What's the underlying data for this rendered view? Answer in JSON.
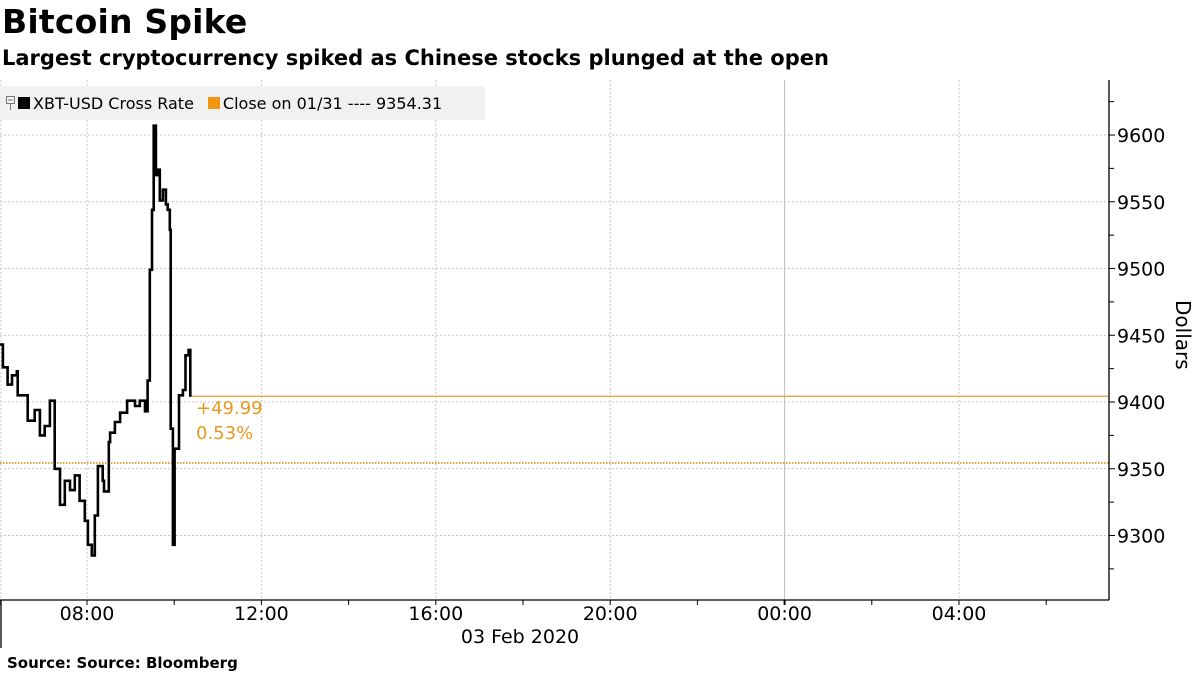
{
  "title": "Bitcoin Spike",
  "subtitle": "Largest cryptocurrency spiked as Chinese stocks plunged at the open",
  "legend": {
    "items": [
      {
        "label": "XBT-USD Cross Rate",
        "color": "#000000",
        "icon": "black-square"
      },
      {
        "label": "Close on 01/31 ---- 9354.31",
        "color": "#f0960f",
        "icon": "orange-square"
      }
    ]
  },
  "y_axis": {
    "label": "Dollars",
    "ticks": [
      "9600",
      "9550",
      "9500",
      "9450",
      "9400",
      "9350",
      "9300"
    ]
  },
  "x_axis": {
    "ticks": [
      "08:00",
      "12:00",
      "16:00",
      "20:00",
      "00:00",
      "04:00"
    ],
    "date_label": "03 Feb 2020"
  },
  "annotation": {
    "change": "+49.99",
    "pct": "0.53%"
  },
  "source": "Source: Source: Bloomberg",
  "colors": {
    "series": "#000000",
    "reference": "#e8a33a",
    "last_line": "#d9a43a",
    "annotation": "#e8981e",
    "grid": "#c8c8c8"
  },
  "chart_data": {
    "type": "line",
    "title": "Bitcoin Spike",
    "subtitle": "Largest cryptocurrency spiked as Chinese stocks plunged at the open",
    "xlabel": "03 Feb 2020",
    "ylabel": "Dollars",
    "ylim": [
      9250,
      9640
    ],
    "xlim_hours": [
      6.0,
      31.4
    ],
    "x_ticks": [
      "08:00",
      "12:00",
      "16:00",
      "20:00",
      "00:00",
      "04:00"
    ],
    "y_ticks": [
      9300,
      9350,
      9400,
      9450,
      9500,
      9550,
      9600
    ],
    "grid": true,
    "legend_position": "top-left",
    "series": [
      {
        "name": "XBT-USD Cross Rate",
        "step": true,
        "x_hours": [
          6.0,
          6.07,
          6.18,
          6.28,
          6.39,
          6.41,
          6.57,
          6.64,
          6.8,
          6.92,
          7.03,
          7.15,
          7.26,
          7.38,
          7.49,
          7.61,
          7.72,
          7.83,
          7.95,
          8.02,
          8.11,
          8.18,
          8.25,
          8.36,
          8.39,
          8.5,
          8.53,
          8.64,
          8.76,
          8.92,
          9.1,
          9.21,
          9.33,
          9.39,
          9.44,
          9.49,
          9.53,
          9.58,
          9.62,
          9.67,
          9.74,
          9.81,
          9.85,
          9.9,
          9.92,
          9.97,
          10.01,
          10.11,
          10.2,
          10.26,
          10.33,
          10.37
        ],
        "values": [
          9443,
          9426,
          9413,
          9420,
          9423,
          9405,
          9405,
          9386,
          9394,
          9375,
          9382,
          9401,
          9350,
          9323,
          9341,
          9334,
          9345,
          9326,
          9311,
          9293,
          9285,
          9315,
          9352,
          9341,
          9333,
          9370,
          9377,
          9385,
          9392,
          9401,
          9397,
          9401,
          9393,
          9416,
          9499,
          9544,
          9607,
          9570,
          9574,
          9551,
          9559,
          9548,
          9544,
          9529,
          9380,
          9293,
          9365,
          9405,
          9409,
          9435,
          9439,
          9404
        ]
      },
      {
        "name": "Close on 01/31",
        "type": "reference",
        "value": 9354.31
      }
    ],
    "annotations": [
      {
        "text": "+49.99",
        "value_change": 49.99
      },
      {
        "text": "0.53%",
        "pct_change": 0.53
      }
    ],
    "last_value": 9404.3
  }
}
